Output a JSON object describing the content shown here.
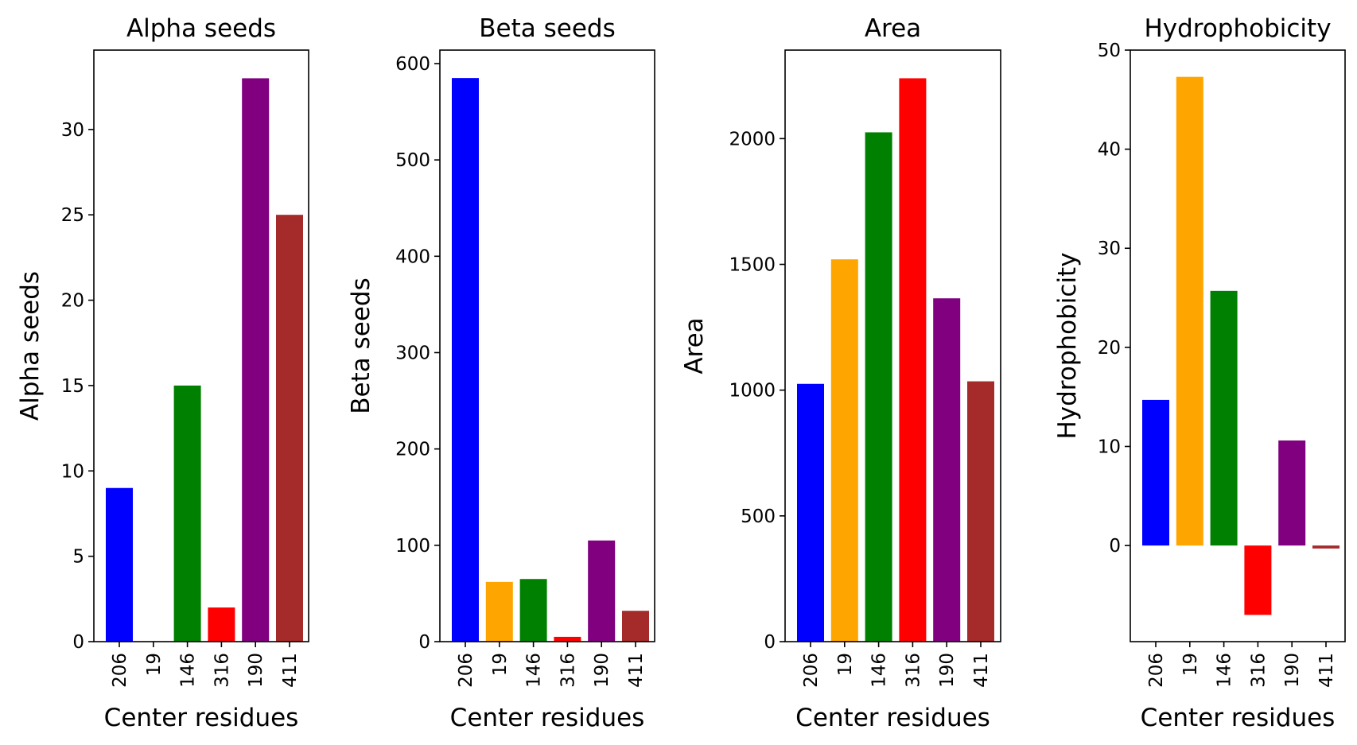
{
  "figure": {
    "background": "#ffffff"
  },
  "chart_data": [
    {
      "type": "bar",
      "title": "Alpha seeds",
      "xlabel": "Center residues",
      "ylabel": "Alpha seeds",
      "categories": [
        "206",
        "19",
        "146",
        "316",
        "190",
        "411"
      ],
      "values": [
        9,
        0,
        15,
        2,
        33,
        25
      ],
      "colors": [
        "#0000ff",
        "#ffa500",
        "#008000",
        "#ff0000",
        "#800080",
        "#a52a2a"
      ],
      "ylim": [
        0,
        34.65
      ],
      "yticks": [
        0,
        5,
        10,
        15,
        20,
        25,
        30
      ],
      "grid": false,
      "legend": "none"
    },
    {
      "type": "bar",
      "title": "Beta seeds",
      "xlabel": "Center residues",
      "ylabel": "Beta seeds",
      "categories": [
        "206",
        "19",
        "146",
        "316",
        "190",
        "411"
      ],
      "values": [
        585,
        62,
        65,
        5,
        105,
        32
      ],
      "colors": [
        "#0000ff",
        "#ffa500",
        "#008000",
        "#ff0000",
        "#800080",
        "#a52a2a"
      ],
      "ylim": [
        0,
        614
      ],
      "yticks": [
        0,
        100,
        200,
        300,
        400,
        500,
        600
      ],
      "grid": false,
      "legend": "none"
    },
    {
      "type": "bar",
      "title": "Area",
      "xlabel": "Center residues",
      "ylabel": "Area",
      "categories": [
        "206",
        "19",
        "146",
        "316",
        "190",
        "411"
      ],
      "values": [
        1025,
        1520,
        2025,
        2240,
        1365,
        1035
      ],
      "colors": [
        "#0000ff",
        "#ffa500",
        "#008000",
        "#ff0000",
        "#800080",
        "#a52a2a"
      ],
      "ylim": [
        0,
        2352
      ],
      "yticks": [
        0,
        500,
        1000,
        1500,
        2000
      ],
      "grid": false,
      "legend": "none"
    },
    {
      "type": "bar",
      "title": "Hydrophobicity",
      "xlabel": "Center residues",
      "ylabel": "Hydrophobicity",
      "categories": [
        "206",
        "19",
        "146",
        "316",
        "190",
        "411"
      ],
      "values": [
        14.7,
        47.3,
        25.7,
        -7.0,
        10.6,
        -0.3
      ],
      "colors": [
        "#0000ff",
        "#ffa500",
        "#008000",
        "#ff0000",
        "#800080",
        "#a52a2a"
      ],
      "ylim": [
        -9.7,
        50
      ],
      "yticks": [
        0,
        10,
        20,
        30,
        40,
        50
      ],
      "grid": false,
      "legend": "none"
    }
  ]
}
